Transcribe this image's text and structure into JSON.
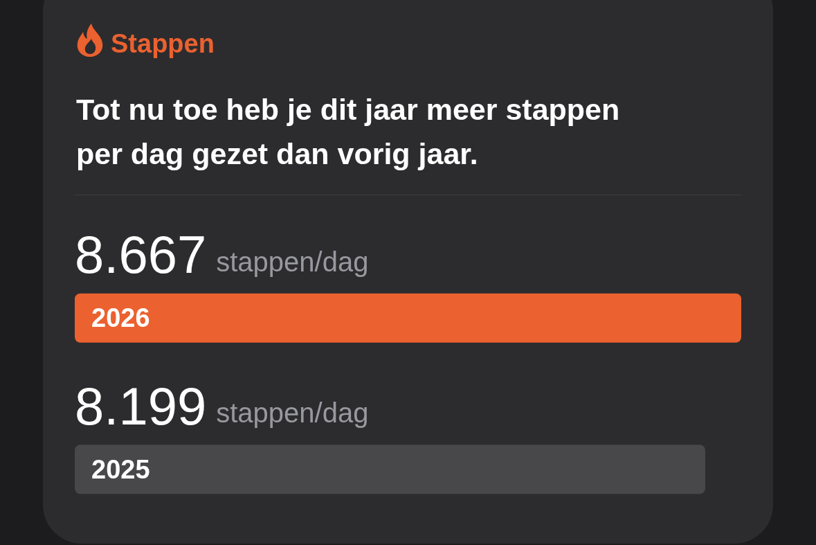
{
  "chart_data": {
    "type": "bar",
    "orientation": "horizontal",
    "title": "Stappen",
    "subtitle": "Tot nu toe heb je dit jaar meer stappen per dag gezet dan vorig jaar.",
    "categories": [
      "2026",
      "2025"
    ],
    "values": [
      8667,
      8199
    ],
    "colors": [
      "#eb6130",
      "#48484a"
    ],
    "value_labels": [
      "8.667",
      "8.199"
    ],
    "annotations": [
      "stappen/dag",
      "stappen/dag"
    ]
  }
}
